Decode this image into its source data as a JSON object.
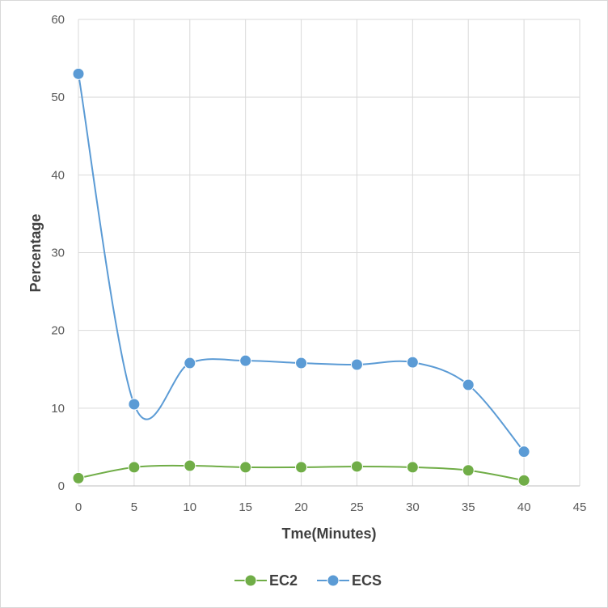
{
  "chart_data": {
    "type": "line",
    "title": "",
    "xlabel": "Tme(Minutes)",
    "ylabel": "Percentage",
    "x": [
      0,
      5,
      10,
      15,
      20,
      25,
      30,
      35,
      40
    ],
    "xlim": [
      0,
      45
    ],
    "ylim": [
      0,
      60
    ],
    "xticks": [
      0,
      5,
      10,
      15,
      20,
      25,
      30,
      35,
      40,
      45
    ],
    "yticks": [
      0,
      10,
      20,
      30,
      40,
      50,
      60
    ],
    "grid": true,
    "smooth": true,
    "legend_position": "bottom",
    "series": [
      {
        "name": "EC2",
        "color": "#70ad47",
        "values": [
          1.0,
          2.4,
          2.6,
          2.4,
          2.4,
          2.5,
          2.4,
          2.0,
          0.7
        ]
      },
      {
        "name": "ECS",
        "color": "#5b9bd5",
        "values": [
          53.0,
          10.5,
          15.8,
          16.1,
          15.8,
          15.6,
          15.9,
          13.0,
          4.4
        ]
      }
    ]
  }
}
